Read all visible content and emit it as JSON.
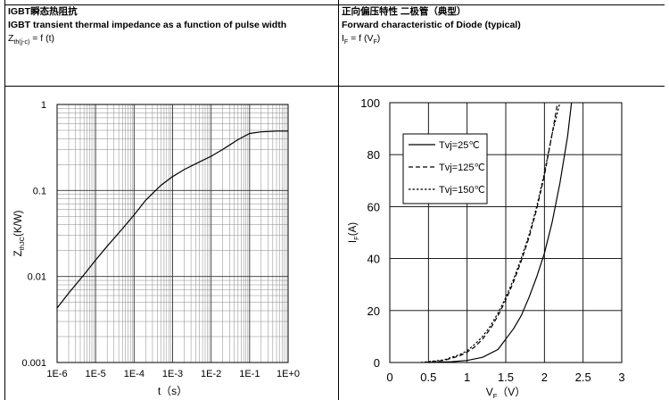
{
  "header": {
    "left": {
      "title": "IGBT瞬态热阻抗",
      "subtitle": "IGBT transient thermal impedance as a function of pulse width",
      "formula_main": "Z",
      "formula_sub": "th(j-c)",
      "formula_rest": " = f (t)"
    },
    "right": {
      "title": "正向偏压特性 二极管（典型）",
      "subtitle": "Forward characteristic of Diode (typical)",
      "formula_main": "I",
      "formula_sub": "F",
      "formula_rest": " = f (V",
      "formula_sub2": "F",
      "formula_end": ")"
    }
  },
  "chart_data": [
    {
      "type": "line",
      "scale": "log-log",
      "xlabel": "t（s）",
      "ylabel_main": "Z",
      "ylabel_sub": "thJC",
      "ylabel_rest": "(K/W)",
      "xticks": [
        "1E-6",
        "1E-5",
        "1E-4",
        "1E-3",
        "1E-2",
        "1E-1",
        "1E+0"
      ],
      "yticks": [
        "0.001",
        "0.01",
        "0.1",
        "1"
      ],
      "xlim": [
        1e-06,
        1
      ],
      "ylim": [
        0.001,
        1
      ],
      "grid": true,
      "series": [
        {
          "x": [
            1e-06,
            2e-06,
            5e-06,
            1e-05,
            2e-05,
            5e-05,
            0.0001,
            0.0002,
            0.0005,
            0.001,
            0.002,
            0.005,
            0.01,
            0.02,
            0.05,
            0.1,
            0.2,
            0.5,
            1
          ],
          "y": [
            0.0043,
            0.0064,
            0.0105,
            0.0155,
            0.0225,
            0.036,
            0.052,
            0.077,
            0.115,
            0.145,
            0.175,
            0.215,
            0.25,
            0.3,
            0.39,
            0.46,
            0.48,
            0.49,
            0.49
          ]
        }
      ]
    },
    {
      "type": "line",
      "xlabel_main": "V",
      "xlabel_sub": "F",
      "xlabel_rest": "（V）",
      "ylabel_main": "I",
      "ylabel_sub": "F",
      "ylabel_rest": "(A)",
      "xticks": [
        "0",
        "0.5",
        "1",
        "1.5",
        "2",
        "2.5",
        "3"
      ],
      "yticks": [
        "0",
        "20",
        "40",
        "60",
        "80",
        "100"
      ],
      "xlim": [
        0,
        3
      ],
      "ylim": [
        0,
        100
      ],
      "grid": true,
      "legend_position": "top-left",
      "series": [
        {
          "name": "Tvj=25℃",
          "dash": "solid",
          "x": [
            0.5,
            0.8,
            1.0,
            1.2,
            1.4,
            1.5,
            1.6,
            1.7,
            1.8,
            1.9,
            2.0,
            2.1,
            2.2,
            2.3,
            2.35
          ],
          "y": [
            0,
            0.3,
            0.8,
            2,
            5,
            9,
            13,
            18,
            25,
            33,
            42,
            54,
            69,
            87,
            100
          ]
        },
        {
          "name": "Tvj=125℃",
          "dash": "dash",
          "x": [
            0.45,
            0.7,
            0.9,
            1.0,
            1.1,
            1.2,
            1.3,
            1.4,
            1.5,
            1.6,
            1.7,
            1.8,
            1.9,
            2.0,
            2.1,
            2.17
          ],
          "y": [
            0,
            0.8,
            2.5,
            4,
            6,
            9,
            13,
            18,
            24,
            31,
            39,
            48,
            59,
            72,
            88,
            100
          ]
        },
        {
          "name": "Tvj=150℃",
          "dash": "dot",
          "x": [
            0.4,
            0.7,
            0.9,
            1.0,
            1.1,
            1.2,
            1.3,
            1.4,
            1.5,
            1.6,
            1.7,
            1.8,
            1.9,
            2.0,
            2.1,
            2.2
          ],
          "y": [
            0,
            1,
            3,
            4.5,
            7,
            10,
            14,
            19,
            25,
            32,
            40,
            49,
            60,
            73,
            88,
            100
          ]
        }
      ]
    }
  ]
}
